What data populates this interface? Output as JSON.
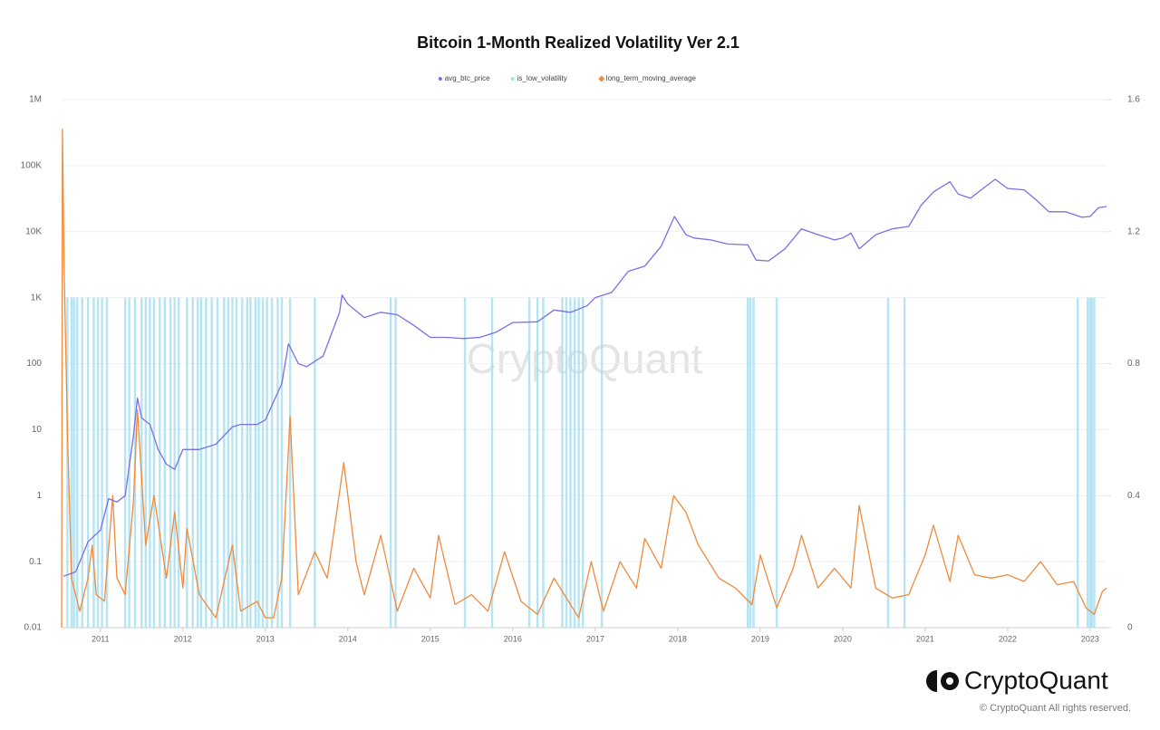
{
  "chart_data": {
    "type": "line",
    "title": "Bitcoin 1-Month Realized Volatility Ver 2.1",
    "watermark": "CryptoQuant",
    "xlim": [
      2010.53,
      2023.21
    ],
    "xticks": [
      2011,
      2012,
      2013,
      2014,
      2015,
      2016,
      2017,
      2018,
      2019,
      2020,
      2021,
      2022,
      2023
    ],
    "ylim": [
      0.01,
      1000000
    ],
    "ylog": true,
    "yticks": [
      0.01,
      0.1,
      1,
      10,
      100,
      {
        "value": 1000,
        "label": "1K"
      },
      {
        "value": 10000,
        "label": "10K"
      },
      {
        "value": 100000,
        "label": "100K"
      },
      {
        "value": 1000000,
        "label": "1M"
      }
    ],
    "y2lim": [
      0,
      1.6
    ],
    "y2ticks": [
      0,
      0.4,
      0.8,
      1.2,
      1.6
    ],
    "grid": true,
    "legend": "top",
    "series": [
      {
        "name": "avg_btc_price",
        "color": "#7b6fe8",
        "type": "line",
        "axis": "y",
        "x": [
          2010.55,
          2010.7,
          2010.85,
          2011.0,
          2011.1,
          2011.2,
          2011.3,
          2011.4,
          2011.45,
          2011.5,
          2011.6,
          2011.7,
          2011.8,
          2011.9,
          2012.0,
          2012.2,
          2012.4,
          2012.6,
          2012.7,
          2012.9,
          2013.0,
          2013.2,
          2013.28,
          2013.4,
          2013.5,
          2013.7,
          2013.9,
          2013.93,
          2014.0,
          2014.2,
          2014.4,
          2014.6,
          2014.8,
          2015.0,
          2015.2,
          2015.4,
          2015.6,
          2015.8,
          2016.0,
          2016.3,
          2016.5,
          2016.7,
          2016.9,
          2017.0,
          2017.2,
          2017.4,
          2017.6,
          2017.8,
          2017.96,
          2018.1,
          2018.2,
          2018.4,
          2018.6,
          2018.85,
          2018.95,
          2019.1,
          2019.3,
          2019.5,
          2019.7,
          2019.9,
          2020.0,
          2020.1,
          2020.2,
          2020.4,
          2020.6,
          2020.8,
          2020.95,
          2021.1,
          2021.3,
          2021.4,
          2021.55,
          2021.7,
          2021.85,
          2022.0,
          2022.2,
          2022.35,
          2022.5,
          2022.7,
          2022.9,
          2023.0,
          2023.1,
          2023.2
        ],
        "values": [
          0.06,
          0.07,
          0.2,
          0.3,
          0.9,
          0.8,
          1,
          8,
          30,
          15,
          12,
          5,
          3,
          2.5,
          5,
          5,
          6,
          11,
          12,
          12,
          14,
          50,
          200,
          100,
          90,
          130,
          600,
          1100,
          800,
          500,
          600,
          550,
          380,
          250,
          250,
          240,
          250,
          300,
          420,
          430,
          650,
          600,
          750,
          1000,
          1200,
          2500,
          3000,
          6000,
          17000,
          9000,
          8000,
          7500,
          6500,
          6300,
          3700,
          3600,
          5500,
          11000,
          9000,
          7500,
          8000,
          9500,
          5500,
          9000,
          11000,
          12000,
          25000,
          40000,
          57000,
          37000,
          32000,
          45000,
          62000,
          45000,
          43000,
          30000,
          20000,
          20000,
          16500,
          17000,
          23000,
          24000
        ]
      },
      {
        "name": "is_low_volatility",
        "color": "#a8dff0",
        "type": "bar",
        "axis": "y2",
        "x": [
          2010.6,
          2010.65,
          2010.68,
          2010.72,
          2010.78,
          2010.85,
          2010.92,
          2010.97,
          2011.02,
          2011.08,
          2011.3,
          2011.35,
          2011.42,
          2011.5,
          2011.55,
          2011.6,
          2011.65,
          2011.72,
          2011.78,
          2011.85,
          2011.9,
          2011.95,
          2012.05,
          2012.12,
          2012.18,
          2012.22,
          2012.28,
          2012.35,
          2012.42,
          2012.5,
          2012.55,
          2012.6,
          2012.65,
          2012.72,
          2012.78,
          2012.82,
          2012.88,
          2012.92,
          2012.97,
          2013.02,
          2013.08,
          2013.15,
          2013.2,
          2013.3,
          2013.6,
          2014.52,
          2014.58,
          2015.42,
          2015.75,
          2016.2,
          2016.3,
          2016.37,
          2016.6,
          2016.65,
          2016.7,
          2016.75,
          2016.8,
          2016.85,
          2017.08,
          2018.85,
          2018.88,
          2018.92,
          2019.2,
          2020.55,
          2020.75,
          2022.85,
          2022.97,
          2023.0,
          2023.02,
          2023.05
        ],
        "values": [
          1,
          1,
          1,
          1,
          1,
          1,
          1,
          1,
          1,
          1,
          1,
          1,
          1,
          1,
          1,
          1,
          1,
          1,
          1,
          1,
          1,
          1,
          1,
          1,
          1,
          1,
          1,
          1,
          1,
          1,
          1,
          1,
          1,
          1,
          1,
          1,
          1,
          1,
          1,
          1,
          1,
          1,
          1,
          1,
          1,
          1,
          1,
          1,
          1,
          1,
          1,
          1,
          1,
          1,
          1,
          1,
          1,
          1,
          1,
          1,
          1,
          1,
          1,
          1,
          1,
          1,
          1,
          1,
          1,
          1
        ]
      },
      {
        "name": "long_term_moving_average",
        "color": "#f08a3c",
        "type": "line",
        "axis": "y2",
        "x": [
          2010.53,
          2010.54,
          2010.56,
          2010.6,
          2010.65,
          2010.75,
          2010.85,
          2010.9,
          2010.95,
          2011.05,
          2011.15,
          2011.2,
          2011.3,
          2011.4,
          2011.45,
          2011.55,
          2011.65,
          2011.8,
          2011.9,
          2012.0,
          2012.05,
          2012.2,
          2012.4,
          2012.6,
          2012.7,
          2012.9,
          2013.0,
          2013.1,
          2013.2,
          2013.3,
          2013.4,
          2013.6,
          2013.75,
          2013.95,
          2014.1,
          2014.2,
          2014.4,
          2014.6,
          2014.8,
          2015.0,
          2015.1,
          2015.3,
          2015.5,
          2015.7,
          2015.9,
          2016.1,
          2016.3,
          2016.5,
          2016.7,
          2016.8,
          2016.95,
          2017.1,
          2017.3,
          2017.5,
          2017.6,
          2017.8,
          2017.95,
          2018.1,
          2018.25,
          2018.5,
          2018.7,
          2018.9,
          2019.0,
          2019.2,
          2019.4,
          2019.5,
          2019.7,
          2019.9,
          2020.1,
          2020.2,
          2020.4,
          2020.6,
          2020.8,
          2021.0,
          2021.1,
          2021.3,
          2021.4,
          2021.6,
          2021.8,
          2022.0,
          2022.2,
          2022.4,
          2022.6,
          2022.8,
          2022.95,
          2023.05,
          2023.15,
          2023.2
        ],
        "values": [
          0,
          1.51,
          1.1,
          0.6,
          0.15,
          0.05,
          0.15,
          0.25,
          0.1,
          0.08,
          0.4,
          0.15,
          0.1,
          0.38,
          0.66,
          0.25,
          0.4,
          0.15,
          0.35,
          0.12,
          0.3,
          0.1,
          0.03,
          0.25,
          0.05,
          0.08,
          0.03,
          0.03,
          0.15,
          0.64,
          0.1,
          0.23,
          0.15,
          0.5,
          0.2,
          0.1,
          0.28,
          0.05,
          0.18,
          0.09,
          0.28,
          0.07,
          0.1,
          0.05,
          0.23,
          0.08,
          0.04,
          0.15,
          0.07,
          0.03,
          0.2,
          0.05,
          0.2,
          0.12,
          0.27,
          0.18,
          0.4,
          0.35,
          0.25,
          0.15,
          0.12,
          0.07,
          0.22,
          0.06,
          0.18,
          0.28,
          0.12,
          0.18,
          0.12,
          0.37,
          0.12,
          0.09,
          0.1,
          0.22,
          0.31,
          0.14,
          0.28,
          0.16,
          0.15,
          0.16,
          0.14,
          0.2,
          0.13,
          0.14,
          0.06,
          0.04,
          0.11,
          0.12
        ]
      }
    ]
  },
  "footer": {
    "logo": "CryptoQuant",
    "copyright": "© CryptoQuant All rights reserved."
  }
}
